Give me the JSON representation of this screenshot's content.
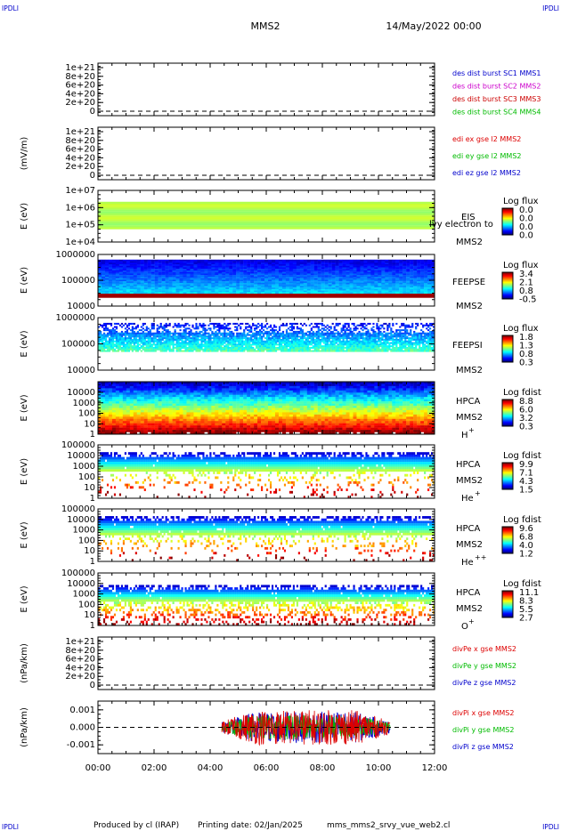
{
  "header": {
    "corner_label": "IPDLI",
    "spacecraft": "MMS2",
    "date": "14/May/2022 00:00"
  },
  "footer": {
    "produced_by": "Produced by cl (IRAP)",
    "printing_date": "Printing date: 02/Jan/2025",
    "filename": "mms_mms2_srvy_vue_web2.cl"
  },
  "colors": {
    "sc1": "#0000cc",
    "sc2": "#cc00cc",
    "sc3": "#cc0000",
    "sc4": "#00bb00",
    "x": "#dd0000",
    "y": "#00bb00",
    "z": "#0000cc"
  },
  "chart_data": [
    {
      "type": "line",
      "panel": "des-dist",
      "ylabel": "",
      "y_ticks": [
        "1e+21",
        "8e+20",
        "6e+20",
        "4e+20",
        "2e+20",
        "0"
      ],
      "ylim": [
        0,
        1e+21
      ],
      "zero_line": true,
      "series": [
        {
          "name": "des dist burst SC1 MMS1",
          "color": "#0000cc",
          "values": []
        },
        {
          "name": "des dist burst SC2 MMS2",
          "color": "#cc00cc",
          "values": []
        },
        {
          "name": "des dist burst SC3 MMS3",
          "color": "#cc0000",
          "values": []
        },
        {
          "name": "des dist burst SC4 MMS4",
          "color": "#00bb00",
          "values": []
        }
      ]
    },
    {
      "type": "line",
      "panel": "edi",
      "ylabel": "(mV/m)",
      "y_ticks": [
        "1e+21",
        "8e+20",
        "6e+20",
        "4e+20",
        "2e+20",
        "0"
      ],
      "ylim": [
        0,
        1e+21
      ],
      "zero_line": true,
      "series": [
        {
          "name": "edi ex gse l2 MMS2",
          "color": "#dd0000",
          "values": []
        },
        {
          "name": "edi ey gse l2 MMS2",
          "color": "#00bb00",
          "values": []
        },
        {
          "name": "edi ez gse l2 MMS2",
          "color": "#0000cc",
          "values": []
        }
      ]
    },
    {
      "type": "heatmap",
      "panel": "eis",
      "ylabel": "E (eV)",
      "y_scale": "log",
      "y_ticks": [
        "1e+07",
        "1e+06",
        "1e+05",
        "1e+04"
      ],
      "ylim": [
        10000,
        10000000
      ],
      "instrument": "EIS",
      "label_overlap": "lvy electron to",
      "spacecraft": "MMS2",
      "colorbar_title": "Log flux",
      "colorbar_ticks": [
        "0.0",
        "0.0",
        "0.0",
        "0.0"
      ]
    },
    {
      "type": "heatmap",
      "panel": "feepse",
      "ylabel": "E (eV)",
      "y_scale": "log",
      "y_ticks": [
        "1000000",
        "100000",
        "10000"
      ],
      "ylim": [
        10000,
        1000000
      ],
      "instrument": "FEEPSE",
      "spacecraft": "MMS2",
      "colorbar_title": "Log flux",
      "colorbar_ticks": [
        "3.4",
        "2.1",
        "0.8",
        "-0.5"
      ]
    },
    {
      "type": "heatmap",
      "panel": "feepsi",
      "ylabel": "E (eV)",
      "y_scale": "log",
      "y_ticks": [
        "1000000",
        "100000",
        "10000"
      ],
      "ylim": [
        10000,
        1000000
      ],
      "instrument": "FEEPSI",
      "spacecraft": "MMS2",
      "colorbar_title": "Log flux",
      "colorbar_ticks": [
        "1.8",
        "1.3",
        "0.8",
        "0.3"
      ]
    },
    {
      "type": "heatmap",
      "panel": "hpca-h",
      "ylabel": "E (eV)",
      "y_scale": "log",
      "y_ticks": [
        "10000",
        "1000",
        "100",
        "10",
        "1"
      ],
      "ylim": [
        1,
        30000
      ],
      "instrument": "HPCA",
      "spacecraft": "MMS2",
      "species": "H",
      "charge": "+",
      "colorbar_title": "Log fdist",
      "colorbar_ticks": [
        "8.8",
        "6.0",
        "3.2",
        "0.3"
      ]
    },
    {
      "type": "heatmap",
      "panel": "hpca-he",
      "ylabel": "E (eV)",
      "y_scale": "log",
      "y_ticks": [
        "100000",
        "10000",
        "1000",
        "100",
        "10",
        "1"
      ],
      "ylim": [
        1,
        100000
      ],
      "instrument": "HPCA",
      "spacecraft": "MMS2",
      "species": "He",
      "charge": "+",
      "colorbar_title": "Log fdist",
      "colorbar_ticks": [
        "9.9",
        "7.1",
        "4.3",
        "1.5"
      ]
    },
    {
      "type": "heatmap",
      "panel": "hpca-he2",
      "ylabel": "E (eV)",
      "y_scale": "log",
      "y_ticks": [
        "100000",
        "10000",
        "1000",
        "100",
        "10",
        "1"
      ],
      "ylim": [
        1,
        100000
      ],
      "instrument": "HPCA",
      "spacecraft": "MMS2",
      "species": "He",
      "charge": "++",
      "colorbar_title": "Log fdist",
      "colorbar_ticks": [
        "9.6",
        "6.8",
        "4.0",
        "1.2"
      ]
    },
    {
      "type": "heatmap",
      "panel": "hpca-o",
      "ylabel": "E (eV)",
      "y_scale": "log",
      "y_ticks": [
        "100000",
        "10000",
        "1000",
        "100",
        "10",
        "1"
      ],
      "ylim": [
        1,
        100000
      ],
      "instrument": "HPCA",
      "spacecraft": "MMS2",
      "species": "O",
      "charge": "+",
      "colorbar_title": "Log fdist",
      "colorbar_ticks": [
        "11.1",
        "8.3",
        "5.5",
        "2.7"
      ]
    },
    {
      "type": "line",
      "panel": "divpe",
      "ylabel": "(nPa/km)",
      "y_ticks": [
        "1e+21",
        "8e+20",
        "6e+20",
        "4e+20",
        "2e+20",
        "0"
      ],
      "ylim": [
        0,
        1e+21
      ],
      "zero_line": true,
      "series": [
        {
          "name": "divPe x gse MMS2",
          "color": "#dd0000",
          "values": []
        },
        {
          "name": "divPe y gse MMS2",
          "color": "#00bb00",
          "values": []
        },
        {
          "name": "divPe z gse MMS2",
          "color": "#0000cc",
          "values": []
        }
      ]
    },
    {
      "type": "line",
      "panel": "divpi",
      "ylabel": "(nPa/km)",
      "y_ticks": [
        "0.001",
        "0.000",
        "-0.001"
      ],
      "ylim": [
        -0.0015,
        0.0015
      ],
      "zero_line": true,
      "data_time_range": [
        "04:25",
        "10:25"
      ],
      "series": [
        {
          "name": "divPi x gse MMS2",
          "color": "#dd0000",
          "amplitude": 0.001
        },
        {
          "name": "divPi y gse MMS2",
          "color": "#00bb00",
          "amplitude": 0.0007
        },
        {
          "name": "divPi z gse MMS2",
          "color": "#0000cc",
          "amplitude": 0.0009
        }
      ]
    }
  ],
  "x_axis": {
    "ticks": [
      "00:00",
      "02:00",
      "04:00",
      "06:00",
      "08:00",
      "10:00",
      "12:00"
    ],
    "xlim_hours": [
      0,
      12
    ]
  }
}
